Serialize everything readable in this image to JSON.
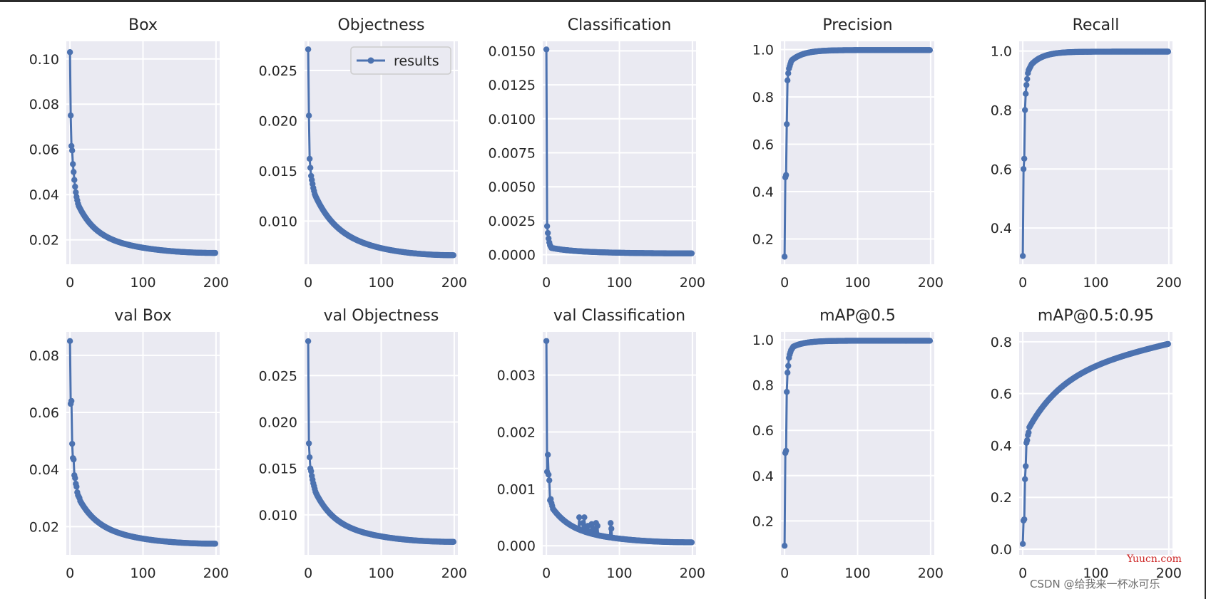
{
  "legend_label": "results",
  "watermark": {
    "site": "Yuucn.com",
    "author": "CSDN @给我来一杯冰可乐"
  },
  "colors": {
    "line": "#4c72b0",
    "plot_bg": "#eaeaf2",
    "grid": "#ffffff",
    "text": "#262626"
  },
  "chart_data": [
    {
      "type": "line",
      "title": "Box",
      "xlabel": "",
      "ylabel": "",
      "xlim": [
        -5,
        205
      ],
      "ylim": [
        0.0092,
        0.1078
      ],
      "xticks": [
        0,
        100,
        200
      ],
      "yticks": [
        0.02,
        0.04,
        0.06,
        0.08,
        0.1
      ],
      "ytick_labels": [
        "0.02",
        "0.04",
        "0.06",
        "0.08",
        "0.10"
      ],
      "curve": {
        "start": [
          0.103,
          0.075,
          0.0615,
          0.0595,
          0.0535,
          0.05,
          0.0465,
          0.0435,
          0.041,
          0.039,
          0.0375,
          0.036,
          0.035
        ],
        "end": 0.0142,
        "k": 0.038,
        "floor": 0.0022,
        "knee": 0.03,
        "lin": 0.0
      },
      "series": [
        {
          "name": "results",
          "n_points": 200
        }
      ]
    },
    {
      "type": "line",
      "title": "Objectness",
      "xlabel": "",
      "ylabel": "",
      "xlim": [
        -5,
        205
      ],
      "ylim": [
        0.0057,
        0.0279
      ],
      "xticks": [
        0,
        100,
        200
      ],
      "yticks": [
        0.01,
        0.015,
        0.02,
        0.025
      ],
      "ytick_labels": [
        "0.010",
        "0.015",
        "0.020",
        "0.025"
      ],
      "curve": {
        "start": [
          0.0271,
          0.0205,
          0.0162,
          0.0153,
          0.0145,
          0.0141,
          0.0137,
          0.0133,
          0.013,
          0.0127,
          0.0125
        ],
        "end": 0.0066,
        "k": 0.03,
        "floor": 0.0003,
        "knee": 0.0047,
        "lin": 0.0
      },
      "legend": {
        "location": "upper-right",
        "entries": [
          "results"
        ]
      },
      "series": [
        {
          "name": "results",
          "n_points": 200
        }
      ]
    },
    {
      "type": "line",
      "title": "Classification",
      "xlabel": "",
      "ylabel": "",
      "xlim": [
        -5,
        205
      ],
      "ylim": [
        -0.0007,
        0.0157
      ],
      "xticks": [
        0,
        100,
        200
      ],
      "yticks": [
        0.0,
        0.0025,
        0.005,
        0.0075,
        0.01,
        0.0125,
        0.015
      ],
      "ytick_labels": [
        "0.0000",
        "0.0025",
        "0.0050",
        "0.0075",
        "0.0100",
        "0.0125",
        "0.0150"
      ],
      "curve": {
        "start": [
          0.0151,
          0.0021,
          0.0016,
          0.0012,
          0.0009,
          0.0007,
          0.0006,
          0.0005
        ],
        "end": 0.0001,
        "k": 0.03,
        "floor": 0.0,
        "knee": 0.00035,
        "lin": 0.0
      },
      "series": [
        {
          "name": "results",
          "n_points": 200
        }
      ]
    },
    {
      "type": "line",
      "title": "Precision",
      "xlabel": "",
      "ylabel": "",
      "xlim": [
        -5,
        205
      ],
      "ylim": [
        0.093,
        1.035
      ],
      "xticks": [
        0,
        100,
        200
      ],
      "yticks": [
        0.2,
        0.4,
        0.6,
        0.8,
        1.0
      ],
      "ytick_labels": [
        "0.2",
        "0.4",
        "0.6",
        "0.8",
        "1.0"
      ],
      "curve": {
        "start": [
          0.125,
          0.46,
          0.47,
          0.685,
          0.87,
          0.9,
          0.92,
          0.93,
          0.94,
          0.95,
          0.955,
          0.958,
          0.96
        ],
        "end": 0.998,
        "k": 0.06,
        "floor": 0.018,
        "knee": -0.02,
        "lin": 0.0
      },
      "series": [
        {
          "name": "results",
          "n_points": 200
        }
      ]
    },
    {
      "type": "line",
      "title": "Recall",
      "xlabel": "",
      "ylabel": "",
      "xlim": [
        -5,
        205
      ],
      "ylim": [
        0.277,
        1.033
      ],
      "xticks": [
        0,
        100,
        200
      ],
      "yticks": [
        0.4,
        0.6,
        0.8,
        1.0
      ],
      "ytick_labels": [
        "0.4",
        "0.6",
        "0.8",
        "1.0"
      ],
      "curve": {
        "start": [
          0.305,
          0.6,
          0.635,
          0.8,
          0.855,
          0.885,
          0.905,
          0.925,
          0.935,
          0.94,
          0.945,
          0.95,
          0.955
        ],
        "end": 0.998,
        "k": 0.06,
        "floor": 0.018,
        "knee": -0.025,
        "lin": 0.0
      },
      "series": [
        {
          "name": "results",
          "n_points": 200
        }
      ]
    },
    {
      "type": "line",
      "title": "val Box",
      "xlabel": "",
      "ylabel": "",
      "xlim": [
        -5,
        205
      ],
      "ylim": [
        0.0101,
        0.0882
      ],
      "xticks": [
        0,
        100,
        200
      ],
      "yticks": [
        0.02,
        0.04,
        0.06,
        0.08
      ],
      "ytick_labels": [
        "0.02",
        "0.04",
        "0.06",
        "0.08"
      ],
      "curve": {
        "start": [
          0.085,
          0.063,
          0.064,
          0.049,
          0.044,
          0.0435,
          0.038,
          0.037,
          0.035,
          0.034,
          0.032,
          0.031,
          0.0305,
          0.03,
          0.029
        ],
        "end": 0.014,
        "k": 0.035,
        "floor": 0.002,
        "knee": 0.017,
        "lin": 0.0
      },
      "series": [
        {
          "name": "results",
          "n_points": 200
        }
      ]
    },
    {
      "type": "line",
      "title": "val Objectness",
      "xlabel": "",
      "ylabel": "",
      "xlim": [
        -5,
        205
      ],
      "ylim": [
        0.0057,
        0.0297
      ],
      "xticks": [
        0,
        100,
        200
      ],
      "yticks": [
        0.01,
        0.015,
        0.02,
        0.025
      ],
      "ytick_labels": [
        "0.010",
        "0.015",
        "0.020",
        "0.025"
      ],
      "curve": {
        "start": [
          0.0287,
          0.0177,
          0.0162,
          0.015,
          0.0147,
          0.0142,
          0.0138,
          0.0134,
          0.0131,
          0.0128,
          0.0125,
          0.0123
        ],
        "end": 0.0071,
        "k": 0.035,
        "floor": 0.0006,
        "knee": 0.0046,
        "lin": 0.0
      },
      "series": [
        {
          "name": "results",
          "n_points": 200
        }
      ]
    },
    {
      "type": "line",
      "title": "val Classification",
      "xlabel": "",
      "ylabel": "",
      "xlim": [
        -5,
        205
      ],
      "ylim": [
        -0.00016,
        0.00376
      ],
      "xticks": [
        0,
        100,
        200
      ],
      "yticks": [
        0.0,
        0.001,
        0.002,
        0.003
      ],
      "ytick_labels": [
        "0.000",
        "0.001",
        "0.002",
        "0.003"
      ],
      "curve": {
        "start": [
          0.0036,
          0.0013,
          0.0016,
          0.00125,
          0.00115,
          0.0008,
          0.00082,
          0.00075,
          0.0007,
          0.00065
        ],
        "end": 6e-05,
        "k": 0.035,
        "floor": 0.0,
        "knee": 0.0006,
        "lin": 0.0
      },
      "spikes": [
        [
          45,
          0.0005
        ],
        [
          50,
          0.0004
        ],
        [
          52,
          0.0005
        ],
        [
          55,
          0.00028
        ],
        [
          57,
          0.00035
        ],
        [
          60,
          0.00025
        ],
        [
          62,
          0.00038
        ],
        [
          65,
          0.0003
        ],
        [
          68,
          0.0004
        ],
        [
          70,
          0.00035
        ],
        [
          88,
          0.0004
        ],
        [
          89,
          0.0003
        ]
      ],
      "series": [
        {
          "name": "results",
          "n_points": 200
        }
      ]
    },
    {
      "type": "line",
      "title": "mAP@0.5",
      "xlabel": "",
      "ylabel": "",
      "xlim": [
        -5,
        205
      ],
      "ylim": [
        0.05,
        1.035
      ],
      "xticks": [
        0,
        100,
        200
      ],
      "yticks": [
        0.2,
        0.4,
        0.6,
        0.8,
        1.0
      ],
      "ytick_labels": [
        "0.2",
        "0.4",
        "0.6",
        "0.8",
        "1.0"
      ],
      "curve": {
        "start": [
          0.09,
          0.5,
          0.51,
          0.77,
          0.855,
          0.885,
          0.92,
          0.935,
          0.945,
          0.955,
          0.96,
          0.965,
          0.97
        ],
        "end": 0.996,
        "k": 0.06,
        "floor": 0.018,
        "knee": -0.01,
        "lin": 0.0
      },
      "series": [
        {
          "name": "results",
          "n_points": 200
        }
      ]
    },
    {
      "type": "line",
      "title": "mAP@0.5:0.95",
      "xlabel": "",
      "ylabel": "",
      "xlim": [
        -5,
        205
      ],
      "ylim": [
        -0.022,
        0.838
      ],
      "xticks": [
        0,
        100,
        200
      ],
      "yticks": [
        0.0,
        0.2,
        0.4,
        0.6,
        0.8
      ],
      "ytick_labels": [
        "0.0",
        "0.2",
        "0.4",
        "0.6",
        "0.8"
      ],
      "curve": {
        "start": [
          0.02,
          0.11,
          0.115,
          0.27,
          0.32,
          0.41,
          0.42,
          0.44,
          0.45,
          0.47
        ],
        "end": 0.795,
        "k": 0.02,
        "floor": 0.15,
        "knee": 0.0,
        "lin": 0.0006
      },
      "series": [
        {
          "name": "results",
          "n_points": 200
        }
      ]
    }
  ]
}
